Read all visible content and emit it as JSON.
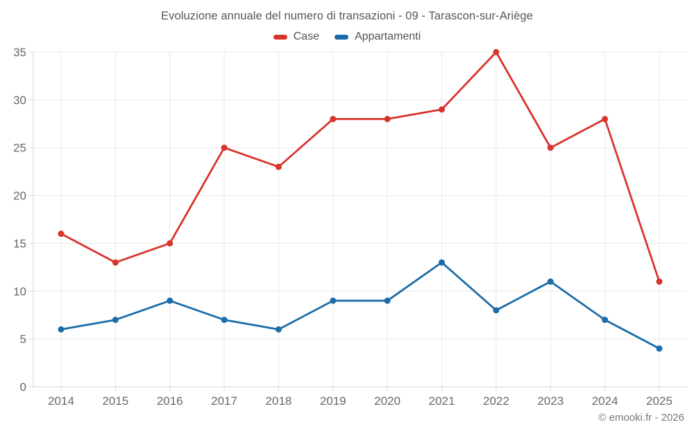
{
  "title": "Evoluzione annuale del numero di transazioni - 09 - Tarascon-sur-Ariège",
  "footer": "© emooki.fr - 2026",
  "chart_data": {
    "type": "line",
    "categories": [
      "2014",
      "2015",
      "2016",
      "2017",
      "2018",
      "2019",
      "2020",
      "2021",
      "2022",
      "2023",
      "2024",
      "2025"
    ],
    "series": [
      {
        "name": "Case",
        "color": "#d8342c",
        "values": [
          16,
          13,
          15,
          25,
          23,
          28,
          28,
          29,
          35,
          25,
          28,
          11
        ]
      },
      {
        "name": "Appartamenti",
        "color": "#1b6ca8",
        "values": [
          6,
          7,
          9,
          7,
          6,
          9,
          9,
          13,
          8,
          11,
          7,
          4
        ]
      }
    ],
    "title": "Evoluzione annuale del numero di transazioni - 09 - Tarascon-sur-Ariège",
    "xlabel": "",
    "ylabel": "",
    "ylim": [
      0,
      35
    ],
    "y_ticks": [
      0,
      5,
      10,
      15,
      20,
      25,
      30,
      35
    ],
    "grid": true,
    "legend_position": "top-center",
    "marker": "circle"
  },
  "colors": {
    "grid": "#e8e8e8",
    "axis": "#d4d4d4",
    "tick_label": "#66676b",
    "title_text": "#55565a",
    "legend_text": "#4f5054",
    "footer_text": "#76777b",
    "background": "#ffffff"
  }
}
